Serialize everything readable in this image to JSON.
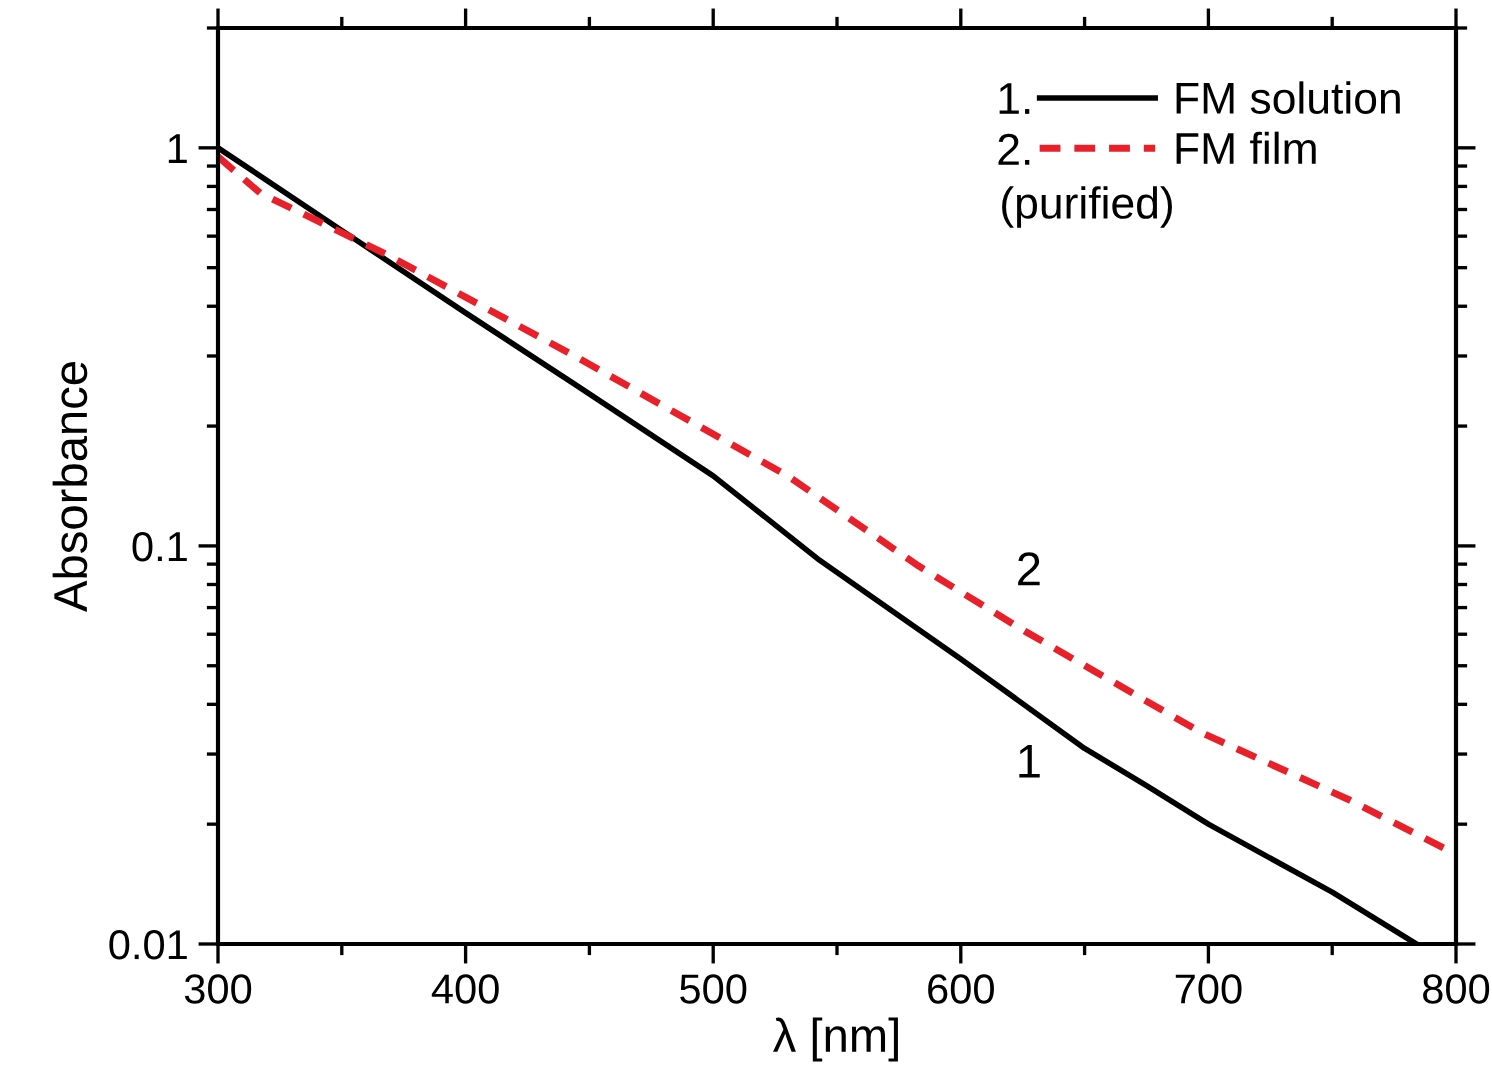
{
  "chart_data": {
    "type": "line",
    "xlabel": "λ [nm]",
    "ylabel": "Absorbance",
    "series": [
      {
        "name": "FM solution",
        "color": "#000000",
        "line_style": "solid",
        "x": [
          300,
          350,
          400,
          444,
          500,
          543,
          600,
          650,
          675,
          700,
          750,
          784
        ],
        "values": [
          1,
          0.62,
          0.385,
          0.255,
          0.15,
          0.092,
          0.052,
          0.031,
          0.025,
          0.02,
          0.0135,
          0.01
        ]
      },
      {
        "name": "FM film",
        "color": "#e8202a",
        "line_style": "dashed",
        "x": [
          300,
          317,
          368,
          444,
          530,
          583,
          626,
          697,
          757,
          800
        ],
        "values": [
          0.95,
          0.77,
          0.54,
          0.3,
          0.15,
          0.089,
          0.061,
          0.034,
          0.023,
          0.0168
        ]
      }
    ],
    "annotations": [
      "1.",
      "2.",
      "(purified)",
      "1",
      "2"
    ],
    "xlim": [
      300,
      800
    ],
    "xticks": [
      300,
      400,
      500,
      600,
      700,
      800
    ],
    "ylim": [
      0.01,
      2
    ],
    "yticks": [
      0.01,
      0.1,
      1
    ],
    "log": "y",
    "grid": false,
    "legend": "top right",
    "marker": "none"
  }
}
